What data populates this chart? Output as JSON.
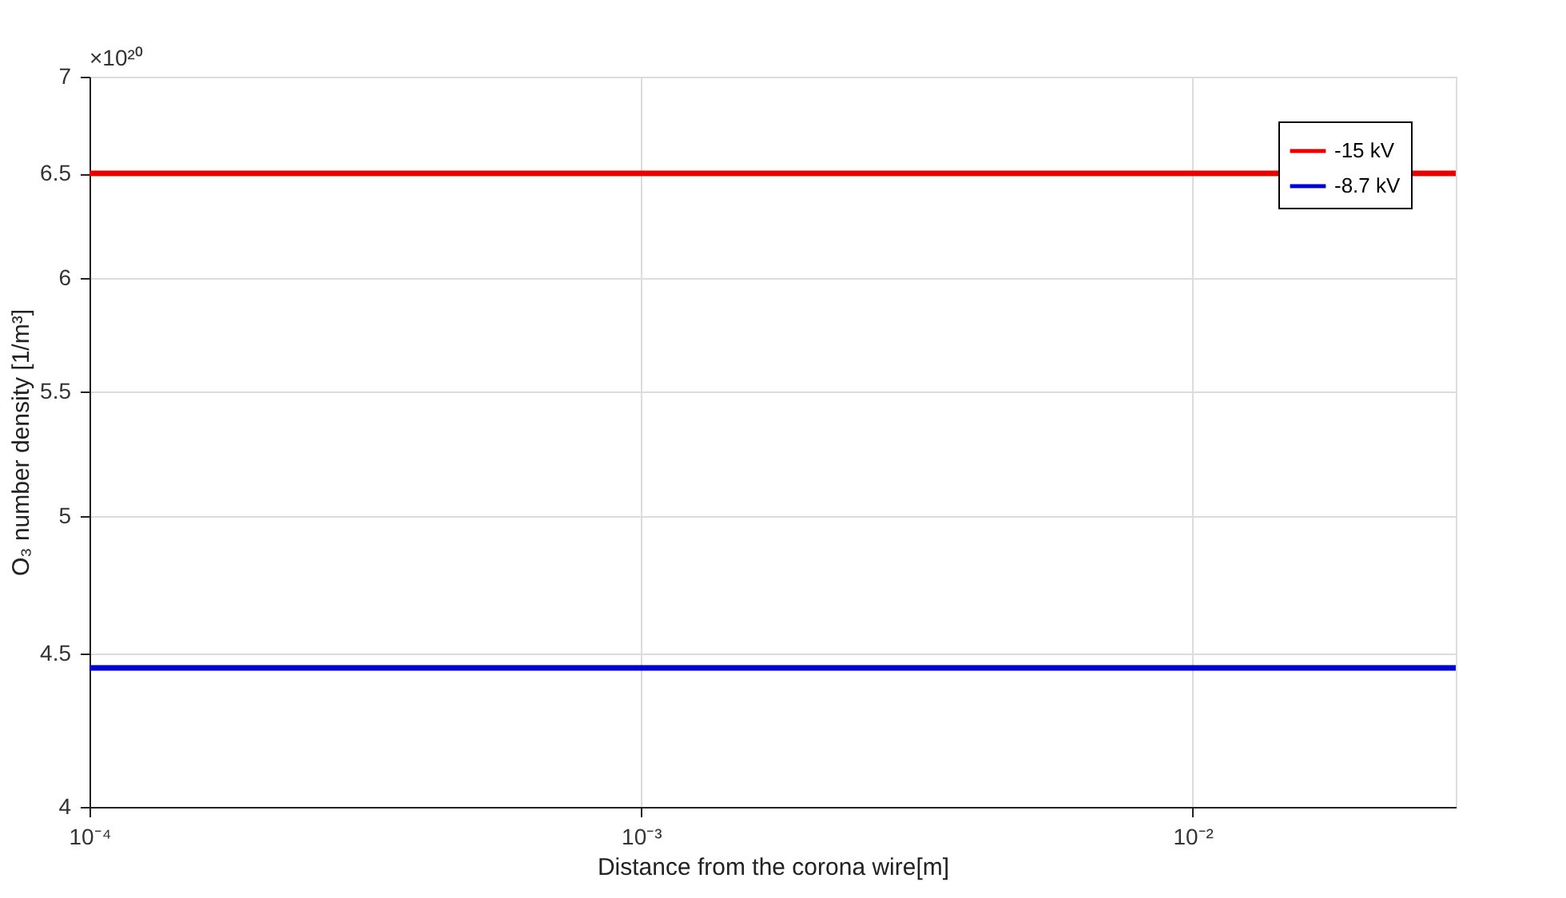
{
  "chart_data": {
    "type": "line",
    "xlabel": "Distance from the corona wire[m]",
    "ylabel": "O₃ number density [1/m³]",
    "annotations": [
      "×10²⁰"
    ],
    "log": "xy",
    "grid": true,
    "legend": "top right",
    "line_style": "solid",
    "marker": "none",
    "xlim": [
      0.0001,
      0.03
    ],
    "xticks": [
      {
        "value": 0.0001,
        "label": "10⁻⁴"
      },
      {
        "value": 0.001,
        "label": "10⁻³"
      },
      {
        "value": 0.01,
        "label": "10⁻²"
      }
    ],
    "ylim": [
      4,
      7
    ],
    "yticks": [
      4,
      4.5,
      5,
      5.5,
      6,
      6.5,
      7
    ],
    "x": [
      0.0001,
      0.03
    ],
    "series": [
      {
        "name": "-15 kV",
        "color": "#e60000",
        "values": [
          6.5,
          6.5
        ]
      },
      {
        "name": "-8.7 kV",
        "color": "#0000cc",
        "values": [
          4.45,
          4.45
        ]
      }
    ]
  }
}
